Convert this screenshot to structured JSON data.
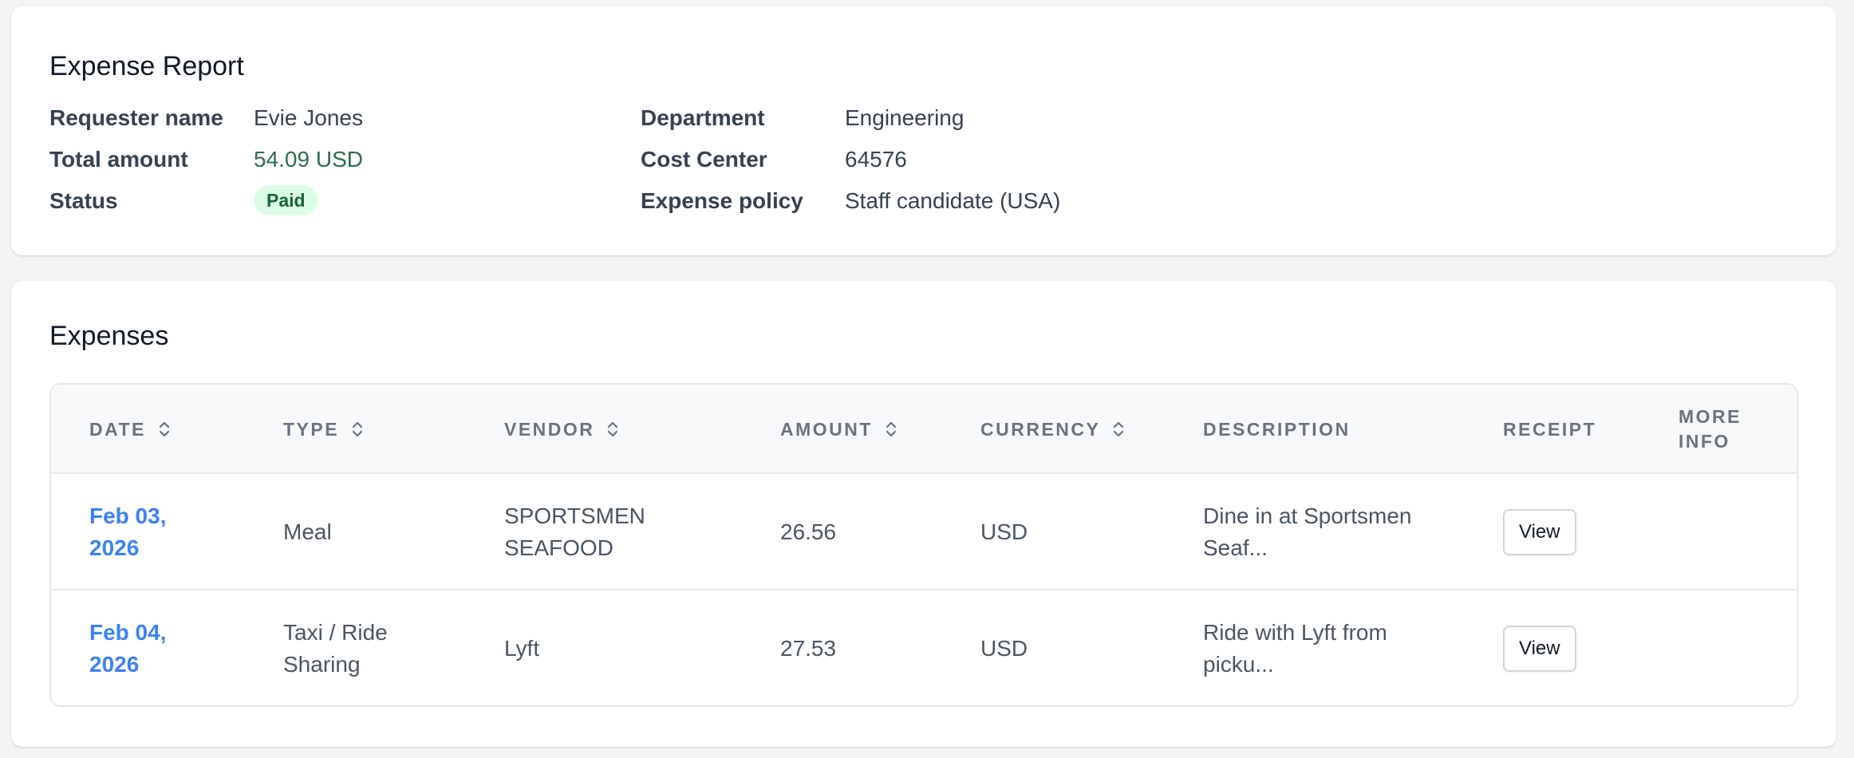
{
  "report": {
    "title": "Expense Report",
    "requester_label": "Requester name",
    "requester_value": "Evie Jones",
    "total_label": "Total amount",
    "total_value": "54.09 USD",
    "status_label": "Status",
    "status_value": "Paid",
    "department_label": "Department",
    "department_value": "Engineering",
    "cost_center_label": "Cost Center",
    "cost_center_value": "64576",
    "policy_label": "Expense policy",
    "policy_value": "Staff candidate (USA)"
  },
  "expenses": {
    "title": "Expenses",
    "columns": {
      "date": "DATE",
      "type": "TYPE",
      "vendor": "VENDOR",
      "amount": "AMOUNT",
      "currency": "CURRENCY",
      "description": "DESCRIPTION",
      "receipt": "RECEIPT",
      "more_info_1": "MORE",
      "more_info_2": "INFO"
    },
    "rows": [
      {
        "date_1": "Feb 03,",
        "date_2": "2026",
        "type_1": "Meal",
        "type_2": "",
        "vendor_1": "SPORTSMEN",
        "vendor_2": "SEAFOOD",
        "amount": "26.56",
        "currency": "USD",
        "description_1": "Dine in at Sportsmen",
        "description_2": "Seaf...",
        "receipt_label": "View"
      },
      {
        "date_1": "Feb 04,",
        "date_2": "2026",
        "type_1": "Taxi / Ride",
        "type_2": "Sharing",
        "vendor_1": "Lyft",
        "vendor_2": "",
        "amount": "27.53",
        "currency": "USD",
        "description_1": "Ride with Lyft from",
        "description_2": "picku...",
        "receipt_label": "View"
      }
    ]
  },
  "icons": {
    "sort": "sort-icon"
  },
  "colors": {
    "amount_green": "#2f6b4f",
    "badge_bg": "#dcfce7",
    "badge_text": "#166534",
    "link_blue": "#3b82f6"
  }
}
